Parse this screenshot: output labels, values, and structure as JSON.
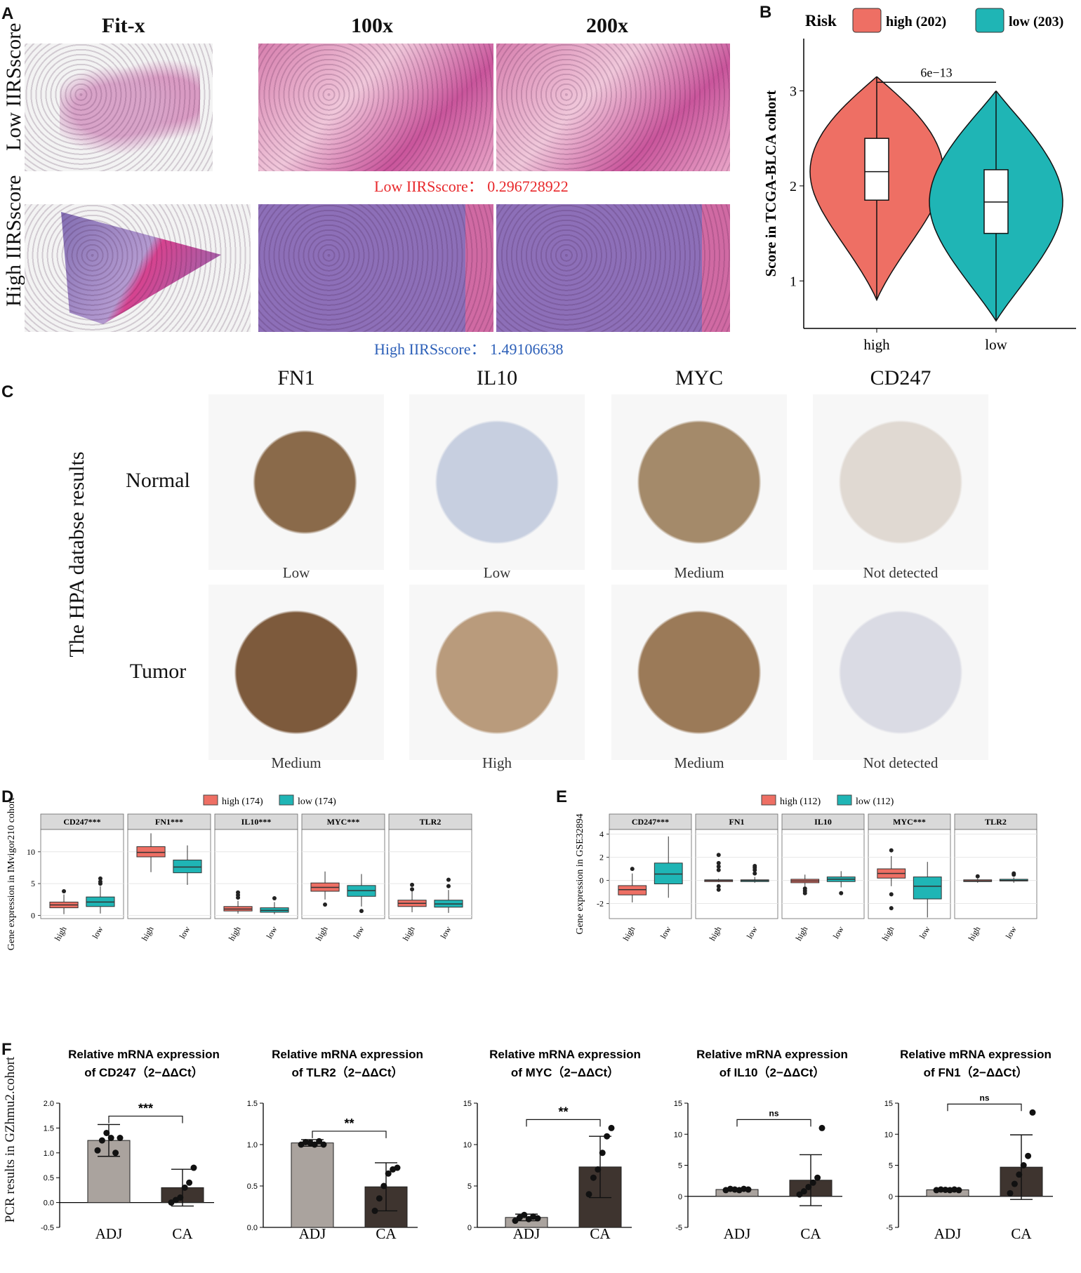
{
  "panels": {
    "A": {
      "label": "A",
      "col_titles": [
        "Fit-x",
        "100x",
        "200x"
      ],
      "row_titles": [
        "Low IIRSscore",
        "High IIRSscore"
      ],
      "low_caption": "Low IIRSscore： 0.296728922",
      "high_caption": "High IIRSscore： 1.49106638"
    },
    "B": {
      "label": "B"
    },
    "C": {
      "label": "C",
      "side_title": "The HPA databse results",
      "genes": [
        "FN1",
        "IL10",
        "MYC",
        "CD247"
      ],
      "rows": [
        "Normal",
        "Tumor"
      ],
      "normal_levels": [
        "Low",
        "Low",
        "Medium",
        "Not detected"
      ],
      "tumor_levels": [
        "Medium",
        "High",
        "Medium",
        "Not detected"
      ]
    },
    "D": {
      "label": "D"
    },
    "E": {
      "label": "E"
    },
    "F": {
      "label": "F",
      "ylabel": "PCR results in GZhmu2.cohort"
    }
  },
  "colors": {
    "high": "#ee6f64",
    "low": "#1fb5b5",
    "adj": "#aaa39e",
    "ca": "#3e342f"
  },
  "chart_data": [
    {
      "id": "B",
      "type": "violin",
      "ylabel": "Score in TCGA-BLCA cohort",
      "legend_title": "Risk",
      "legend_position": "top",
      "categories": [
        "high",
        "low"
      ],
      "series": [
        {
          "name": "high (202)",
          "category": "high",
          "min": 0.8,
          "q1": 1.85,
          "median": 2.15,
          "q3": 2.5,
          "max": 3.15
        },
        {
          "name": "low (203)",
          "category": "low",
          "min": 0.58,
          "q1": 1.5,
          "median": 1.83,
          "q3": 2.17,
          "max": 3.0
        }
      ],
      "yticks": [
        1,
        2,
        3
      ],
      "ylim": [
        0.5,
        3.55
      ],
      "annotation": "6e−13"
    },
    {
      "id": "D",
      "type": "boxplot",
      "ylabel": "Gene expression in IMvigor210 cohort",
      "legend": [
        "high (174)",
        "low (174)"
      ],
      "legend_position": "top",
      "ylim": [
        -0.5,
        13.5
      ],
      "yticks": [
        0,
        5,
        10
      ],
      "facets": [
        {
          "name": "CD247***",
          "high": {
            "min": 0.2,
            "q1": 1.2,
            "median": 1.65,
            "q3": 2.1,
            "max": 3.3,
            "outliers": [
              3.8
            ]
          },
          "low": {
            "min": 0.3,
            "q1": 1.4,
            "median": 2.1,
            "q3": 2.9,
            "max": 4.6,
            "outliers": [
              5.0,
              5.3,
              5.8
            ]
          }
        },
        {
          "name": "FN1***",
          "high": {
            "min": 6.8,
            "q1": 9.2,
            "median": 9.9,
            "q3": 10.8,
            "max": 12.9,
            "outliers": []
          },
          "low": {
            "min": 4.8,
            "q1": 6.7,
            "median": 7.6,
            "q3": 8.7,
            "max": 11.0,
            "outliers": []
          }
        },
        {
          "name": "IL10***",
          "high": {
            "min": 0.3,
            "q1": 0.7,
            "median": 1.0,
            "q3": 1.4,
            "max": 2.3,
            "outliers": [
              2.8,
              3.2,
              3.6
            ]
          },
          "low": {
            "min": 0.2,
            "q1": 0.5,
            "median": 0.8,
            "q3": 1.2,
            "max": 2.1,
            "outliers": [
              2.7
            ]
          }
        },
        {
          "name": "MYC***",
          "high": {
            "min": 2.5,
            "q1": 3.8,
            "median": 4.4,
            "q3": 5.1,
            "max": 6.9,
            "outliers": [
              1.7
            ]
          },
          "low": {
            "min": 1.4,
            "q1": 3.0,
            "median": 3.9,
            "q3": 4.7,
            "max": 6.5,
            "outliers": [
              0.7
            ]
          }
        },
        {
          "name": "TLR2",
          "high": {
            "min": 0.5,
            "q1": 1.4,
            "median": 1.9,
            "q3": 2.4,
            "max": 3.8,
            "outliers": [
              4.1,
              4.8
            ]
          },
          "low": {
            "min": 0.4,
            "q1": 1.3,
            "median": 1.8,
            "q3": 2.4,
            "max": 4.0,
            "outliers": [
              4.6,
              5.6
            ]
          }
        }
      ],
      "categories": [
        "high",
        "low"
      ]
    },
    {
      "id": "E",
      "type": "boxplot",
      "ylabel": "Gene expression in GSE32894",
      "legend": [
        "high (112)",
        "low (112)"
      ],
      "legend_position": "top",
      "ylim": [
        -3.3,
        4.4
      ],
      "yticks": [
        -2,
        0,
        2,
        4
      ],
      "facets": [
        {
          "name": "CD247***",
          "high": {
            "min": -1.9,
            "q1": -1.25,
            "median": -0.8,
            "q3": -0.45,
            "max": 0.6,
            "outliers": [
              1.0
            ]
          },
          "low": {
            "min": -1.5,
            "q1": -0.3,
            "median": 0.55,
            "q3": 1.5,
            "max": 3.8,
            "outliers": []
          }
        },
        {
          "name": "FN1",
          "high": {
            "min": -0.15,
            "q1": -0.1,
            "median": 0.0,
            "q3": 0.05,
            "max": 0.15,
            "outliers": [
              -0.8,
              -0.5,
              0.9,
              1.2,
              1.5,
              2.2
            ]
          },
          "low": {
            "min": -0.2,
            "q1": -0.1,
            "median": 0.0,
            "q3": 0.05,
            "max": 0.3,
            "outliers": [
              0.6,
              0.9,
              1.1,
              1.25
            ]
          }
        },
        {
          "name": "IL10",
          "high": {
            "min": -0.5,
            "q1": -0.2,
            "median": -0.05,
            "q3": 0.1,
            "max": 0.5,
            "outliers": [
              -0.7,
              -0.9,
              -1.1
            ]
          },
          "low": {
            "min": -0.6,
            "q1": -0.1,
            "median": 0.1,
            "q3": 0.3,
            "max": 0.8,
            "outliers": [
              -1.1
            ]
          }
        },
        {
          "name": "MYC***",
          "high": {
            "min": -0.5,
            "q1": 0.2,
            "median": 0.6,
            "q3": 1.0,
            "max": 2.1,
            "outliers": [
              2.6,
              -1.2,
              -2.4
            ]
          },
          "low": {
            "min": -3.2,
            "q1": -1.6,
            "median": -0.5,
            "q3": 0.3,
            "max": 1.6,
            "outliers": []
          }
        },
        {
          "name": "TLR2",
          "high": {
            "min": -0.2,
            "q1": -0.1,
            "median": -0.05,
            "q3": 0.05,
            "max": 0.15,
            "outliers": [
              0.35
            ]
          },
          "low": {
            "min": -0.2,
            "q1": -0.05,
            "median": 0.0,
            "q3": 0.1,
            "max": 0.25,
            "outliers": [
              0.5,
              0.6
            ]
          }
        }
      ],
      "categories": [
        "high",
        "low"
      ]
    },
    {
      "id": "F",
      "type": "bar",
      "categories": [
        "ADJ",
        "CA"
      ],
      "subplots": [
        {
          "title": "Relative mRNA expression\nof CD247（2−ΔΔCt）",
          "ylim": [
            -0.5,
            2.0
          ],
          "yticks": [
            -0.5,
            0.0,
            0.5,
            1.0,
            1.5,
            2.0
          ],
          "tickfmt": 1,
          "values": [
            1.25,
            0.3
          ],
          "sd": [
            0.32,
            0.37
          ],
          "points": [
            [
              1.05,
              1.25,
              1.4,
              1.3,
              1.0,
              1.3
            ],
            [
              0.0,
              0.05,
              0.1,
              0.3,
              0.4,
              0.7
            ]
          ],
          "significance": "***"
        },
        {
          "title": "Relative mRNA expression\nof TLR2（2−ΔΔCt）",
          "ylim": [
            0.0,
            1.5
          ],
          "yticks": [
            0.0,
            0.5,
            1.0,
            1.5
          ],
          "tickfmt": 1,
          "values": [
            1.02,
            0.49
          ],
          "sd": [
            0.04,
            0.29
          ],
          "points": [
            [
              1.0,
              1.03,
              1.02,
              1.0,
              1.04,
              1.0
            ],
            [
              0.2,
              0.35,
              0.5,
              0.65,
              0.7,
              0.72
            ]
          ],
          "significance": "**"
        },
        {
          "title": "Relative mRNA expression\nof MYC（2−ΔΔCt）",
          "ylim": [
            0,
            15
          ],
          "yticks": [
            0,
            5,
            10,
            15
          ],
          "tickfmt": 0,
          "values": [
            1.2,
            7.3
          ],
          "sd": [
            0.4,
            3.7
          ],
          "points": [
            [
              0.8,
              1.2,
              1.5,
              1.0,
              1.3,
              1.1
            ],
            [
              4.0,
              6.0,
              7.0,
              9.0,
              11.0,
              12.0
            ]
          ],
          "significance": "**"
        },
        {
          "title": "Relative mRNA expression\nof IL10（2−ΔΔCt）",
          "ylim": [
            -5,
            15
          ],
          "yticks": [
            -5,
            0,
            5,
            10,
            15
          ],
          "tickfmt": 0,
          "values": [
            1.1,
            2.6
          ],
          "sd": [
            0.2,
            4.1
          ],
          "points": [
            [
              1.0,
              1.2,
              1.1,
              1.0,
              1.2,
              1.1
            ],
            [
              0.3,
              0.8,
              1.5,
              2.2,
              3.0,
              11.0
            ]
          ],
          "significance": "ns"
        },
        {
          "title": "Relative mRNA expression\nof FN1（2−ΔΔCt）",
          "ylim": [
            -5,
            15
          ],
          "yticks": [
            -5,
            0,
            5,
            10,
            15
          ],
          "tickfmt": 0,
          "values": [
            1.05,
            4.7
          ],
          "sd": [
            0.1,
            5.2
          ],
          "points": [
            [
              1.0,
              1.1,
              1.05,
              1.0,
              1.1,
              1.0
            ],
            [
              0.5,
              2.0,
              3.5,
              5.0,
              6.5,
              13.5
            ]
          ],
          "significance": "ns"
        }
      ]
    }
  ]
}
